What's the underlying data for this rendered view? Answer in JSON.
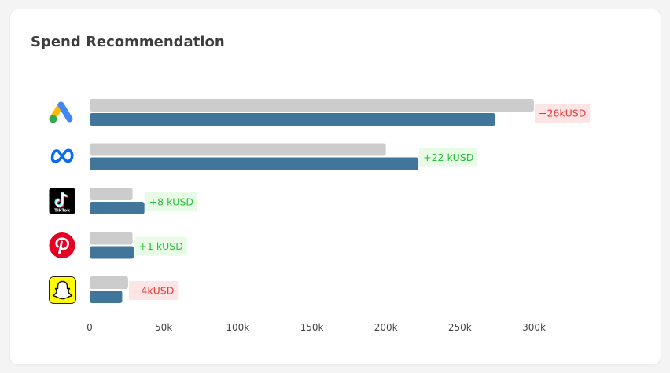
{
  "card": {
    "title": "Spend Recommendation"
  },
  "chart_data": {
    "type": "bar",
    "orientation": "horizontal",
    "categories": [
      "Google Ads",
      "Meta",
      "TikTok",
      "Pinterest",
      "Snapchat"
    ],
    "category_icons": [
      "google-ads-icon",
      "meta-icon",
      "tiktok-icon",
      "pinterest-icon",
      "snapchat-icon"
    ],
    "series": [
      {
        "values": [
          300000,
          200000,
          29000,
          29000,
          26000
        ],
        "color": "#cccccc"
      },
      {
        "values": [
          274000,
          222000,
          37000,
          30000,
          22000
        ],
        "color": "#41769a"
      }
    ],
    "change_labels": [
      "−26kUSD",
      "+22 kUSD",
      "+8 kUSD",
      "+1 kUSD",
      "−4kUSD"
    ],
    "change_direction": [
      "negative",
      "positive",
      "positive",
      "positive",
      "negative"
    ],
    "positive_text_color": "#2dbb3a",
    "positive_bg_color": "#e8fbe6",
    "negative_text_color": "#e53935",
    "negative_bg_color": "#fde5e5",
    "xlim": [
      0,
      300000
    ],
    "xticks": [
      0,
      50000,
      100000,
      150000,
      200000,
      250000,
      300000
    ],
    "xtick_labels": [
      "0",
      "50k",
      "100k",
      "150k",
      "200k",
      "250k",
      "300k"
    ],
    "grid": false
  }
}
